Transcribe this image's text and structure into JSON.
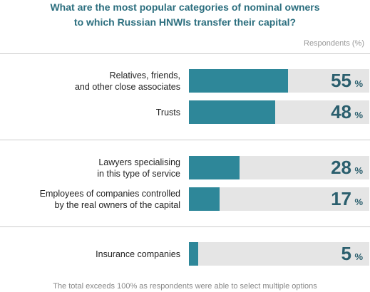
{
  "chart_data": {
    "type": "bar",
    "orientation": "horizontal",
    "title": "What are the most popular categories of nominal owners\nto which Russian HNWIs transfer their capital?",
    "axis_label": "Respondents (%)",
    "categories": [
      "Relatives, friends,\nand other close associates",
      "Trusts",
      "Lawyers specialising\nin this type of service",
      "Employees of companies controlled\nby the real owners of the capital",
      "Insurance companies"
    ],
    "values": [
      55,
      48,
      28,
      17,
      5
    ],
    "unit": "%",
    "xlim": [
      0,
      100
    ],
    "color": "#2e8799",
    "footnote": "The total exceeds 100% as respondents were able to select multiple options"
  }
}
